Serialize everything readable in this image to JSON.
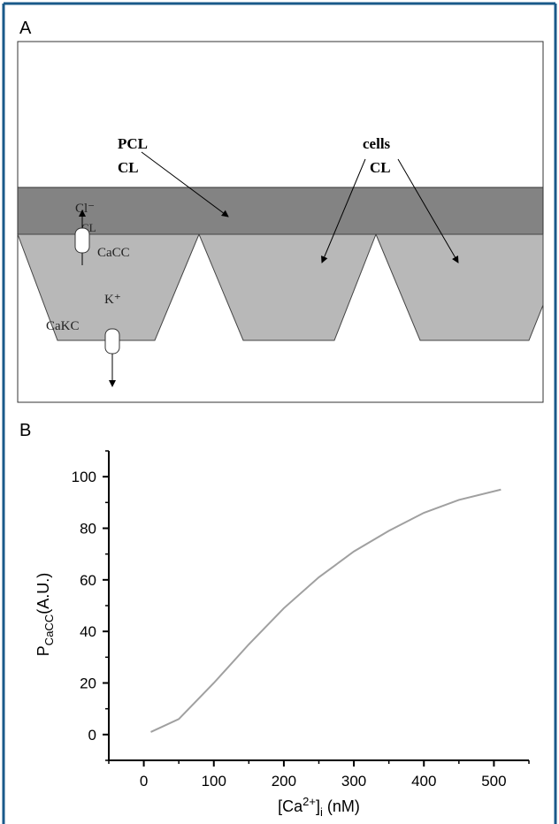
{
  "panel_a": {
    "label": "A",
    "pcl": "PCL",
    "cl_left": "CL",
    "cells": "cells",
    "cl_right": "CL",
    "cl_ion": "Cl⁻",
    "cl_small": "CL",
    "cacc": "CaCC",
    "k_ion": "K⁺",
    "cakc": "CaKC"
  },
  "chart_data": {
    "type": "line",
    "panel_label": "B",
    "y_label": {
      "main": "P",
      "sub": "CaCC",
      "rest": "(A.U.)"
    },
    "x_label": {
      "open": "[Ca",
      "sup": "2+",
      "close": "]",
      "sub": "i",
      "rest": " (nM)"
    },
    "x": [
      10,
      50,
      100,
      150,
      200,
      250,
      300,
      350,
      400,
      450,
      510
    ],
    "series": [
      {
        "color": "#a0a0a0",
        "values": [
          1,
          6,
          20,
          35,
          49,
          61,
          71,
          79,
          86,
          91,
          95
        ]
      }
    ],
    "xlim": [
      -50,
      550
    ],
    "ylim": [
      -10,
      110
    ],
    "xticks": [
      0,
      100,
      200,
      300,
      400,
      500
    ],
    "yticks": [
      0,
      20,
      40,
      60,
      80,
      100
    ],
    "xminorticks": [
      -50,
      50,
      150,
      250,
      350,
      450,
      550
    ],
    "yminorticks": [
      -10,
      10,
      30,
      50,
      70,
      90,
      110
    ]
  }
}
